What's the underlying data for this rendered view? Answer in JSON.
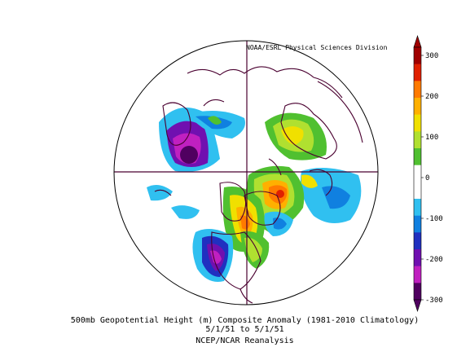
{
  "credit": "NOAA/ESRL Physical Sciences Division",
  "caption": {
    "line1": "500mb Geopotential Height (m) Composite Anomaly (1981-2010 Climatology)",
    "line2": "5/1/51 to 5/1/51",
    "line3": "NCEP/NCAR Reanalysis"
  },
  "colorbar": {
    "ticks": [
      "300",
      "200",
      "100",
      "0",
      "-100",
      "-200",
      "-300"
    ],
    "colors": [
      "#a00000",
      "#e02000",
      "#ff7a00",
      "#ffb000",
      "#f0e000",
      "#b0e030",
      "#50c030",
      "#ffffff",
      "#ffffff",
      "#30c0f0",
      "#1080e0",
      "#2030c0",
      "#7010b0",
      "#c020c0",
      "#500060"
    ]
  },
  "map": {
    "projection": "north-polar-stereographic",
    "ocean": "#ffffff",
    "coast": "#4a0030"
  }
}
